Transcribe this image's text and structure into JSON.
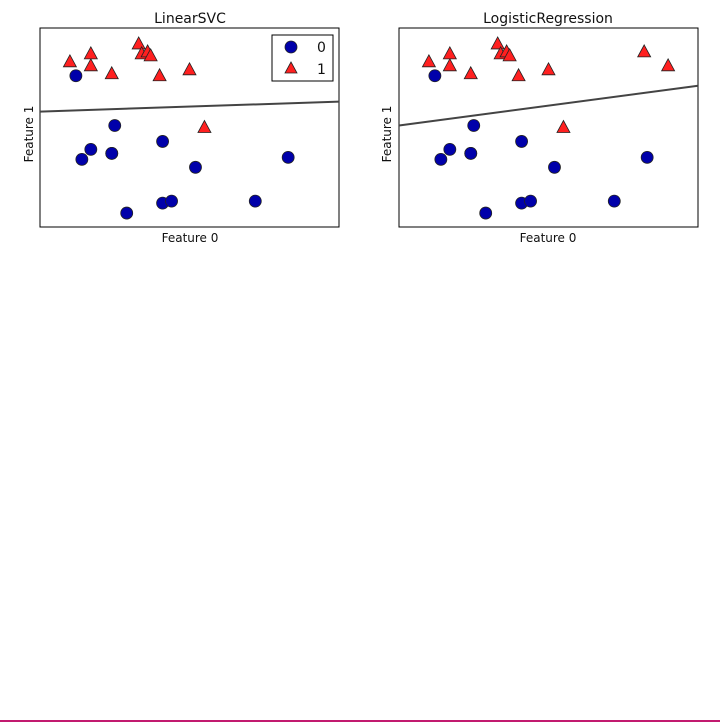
{
  "colors": {
    "class_0": "#0000aa",
    "class_1": "#ff2020",
    "boundary": "#444444",
    "frame": "#000000"
  },
  "legend": {
    "items": [
      {
        "label": "0",
        "marker": "circle"
      },
      {
        "label": "1",
        "marker": "triangle"
      }
    ],
    "placement": "top-right"
  },
  "chart_data": [
    {
      "type": "scatter",
      "title": "LinearSVC",
      "xlabel": "Feature 0",
      "ylabel": "Feature 1",
      "xlim": [
        0,
        10
      ],
      "ylim": [
        0,
        10
      ],
      "show_ticks": false,
      "grid": false,
      "legend": true,
      "series": [
        {
          "name": "0",
          "marker": "circle",
          "x": [
            1.2,
            1.7,
            1.4,
            2.4,
            2.5,
            2.4,
            2.9,
            4.1,
            4.1,
            4.4,
            5.2,
            7.2,
            8.3
          ],
          "y": [
            7.6,
            3.9,
            3.4,
            3.7,
            5.1,
            3.7,
            0.7,
            4.3,
            1.2,
            1.3,
            3.0,
            1.3,
            3.5
          ]
        },
        {
          "name": "1",
          "marker": "triangle",
          "x": [
            1.0,
            1.7,
            1.7,
            2.4,
            3.3,
            3.4,
            3.6,
            3.7,
            4.0,
            5.0,
            5.5
          ],
          "y": [
            8.3,
            8.1,
            8.7,
            7.7,
            9.2,
            8.7,
            8.8,
            8.6,
            7.6,
            7.9,
            5.0
          ]
        }
      ],
      "decision_boundary": {
        "x": [
          0,
          10
        ],
        "y": [
          5.8,
          6.3
        ]
      }
    },
    {
      "type": "scatter",
      "title": "LogisticRegression",
      "xlabel": "Feature 0",
      "ylabel": "Feature 1",
      "xlim": [
        0,
        10
      ],
      "ylim": [
        0,
        10
      ],
      "show_ticks": false,
      "grid": false,
      "legend": false,
      "series": [
        {
          "name": "0",
          "marker": "circle",
          "x": [
            1.2,
            1.7,
            1.4,
            2.4,
            2.5,
            2.4,
            2.9,
            4.1,
            4.1,
            4.4,
            5.2,
            7.2,
            8.3
          ],
          "y": [
            7.6,
            3.9,
            3.4,
            3.7,
            5.1,
            3.7,
            0.7,
            4.3,
            1.2,
            1.3,
            3.0,
            1.3,
            3.5
          ]
        },
        {
          "name": "1",
          "marker": "triangle",
          "x": [
            1.0,
            1.7,
            1.7,
            2.4,
            3.3,
            3.4,
            3.6,
            3.7,
            4.0,
            5.0,
            5.5,
            8.2,
            9.0
          ],
          "y": [
            8.3,
            8.1,
            8.7,
            7.7,
            9.2,
            8.7,
            8.8,
            8.6,
            7.6,
            7.9,
            5.0,
            8.8,
            8.1
          ]
        }
      ],
      "decision_boundary": {
        "x": [
          0,
          10
        ],
        "y": [
          5.1,
          7.1
        ]
      }
    }
  ]
}
